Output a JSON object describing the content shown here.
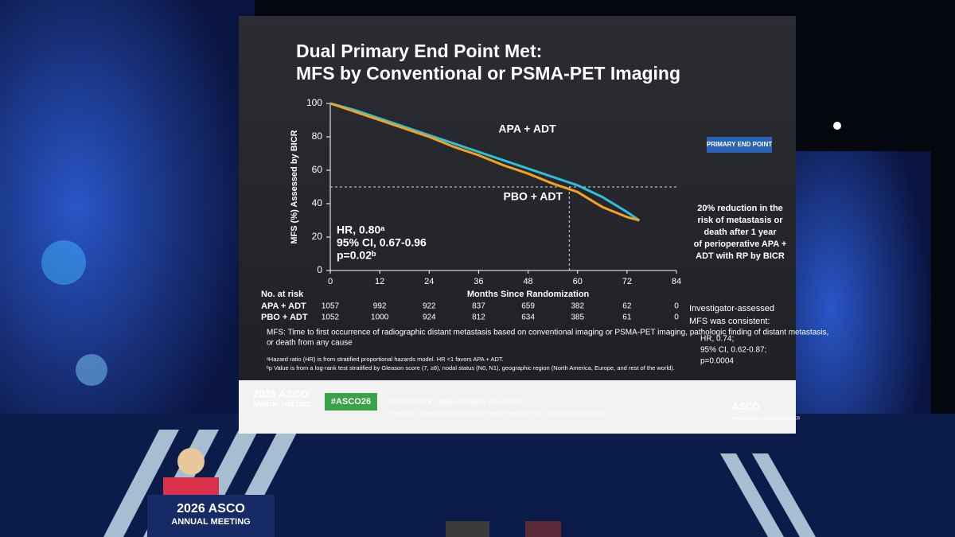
{
  "chart_data": {
    "type": "line",
    "title": [
      "Dual Primary End Point Met:",
      "MFS by Conventional or PSMA-PET Imaging"
    ],
    "badge": "PRIMARY END POINT",
    "ylabel": "MFS (%) Assessed by BICR",
    "xlabel": "Months Since Randomization",
    "x": [
      0,
      6,
      12,
      18,
      24,
      30,
      36,
      42,
      48,
      54,
      60,
      66,
      72,
      75
    ],
    "series": [
      {
        "name": "APA + ADT",
        "color": "#2fbfdc",
        "values": [
          100,
          96,
          91,
          86,
          81,
          76,
          71,
          66,
          61,
          56,
          51,
          44,
          35,
          30
        ]
      },
      {
        "name": "PBO + ADT",
        "color": "#f5a21f",
        "values": [
          100,
          95,
          90,
          85,
          80,
          74,
          69,
          63,
          58,
          52,
          47,
          38,
          32,
          30
        ]
      }
    ],
    "xlim": [
      0,
      84
    ],
    "xticks": [
      0,
      12,
      24,
      36,
      48,
      60,
      72,
      84
    ],
    "ylim": [
      0,
      100
    ],
    "yticks": [
      0,
      20,
      40,
      60,
      80,
      100
    ],
    "reference_y": 50,
    "reference_x": 58,
    "stats": [
      "HR, 0.80ᵃ",
      "95% CI, 0.67-0.96",
      "p=0.02ᵇ"
    ],
    "at_risk": {
      "title": "No. at risk",
      "rows": [
        {
          "name": "APA + ADT",
          "values": [
            "1057",
            "992",
            "922",
            "837",
            "659",
            "382",
            "62",
            "0"
          ]
        },
        {
          "name": "PBO + ADT",
          "values": [
            "1052",
            "1000",
            "924",
            "812",
            "634",
            "385",
            "61",
            "0"
          ]
        }
      ]
    }
  },
  "side_note": [
    "20% reduction in the",
    "risk of metastasis or",
    "death after 1 year",
    "of perioperative APA +",
    "ADT with RP by BICR"
  ],
  "investigator": {
    "heading": [
      "Investigator-assessed",
      "MFS was consistent:"
    ],
    "items": [
      "HR, 0.74;",
      "95% CI, 0.62-0.87;",
      "p=0.0004"
    ]
  },
  "definition": [
    "MFS: Time to first occurrence of radiographic distant metastasis based on conventional imaging or PSMA-PET imaging, pathologic finding of distant metastasis,",
    "or death from any cause"
  ],
  "footnotes": [
    "ᵃHazard ratio (HR) is from stratified proportional hazards model. HR <1 favors APA + ADT.",
    "ᵇp Value is from a log-rank test stratified by Gleason score (7, ≥8), nodal status (N0, N1), geographic region (North America, Europe, and rest of the world)."
  ],
  "footer": {
    "meeting": [
      "2026 ASCO",
      "ANNUAL MEETING"
    ],
    "hashtag": "#ASCO26",
    "presenter": "PRESENTED BY: Mary-Ellen Taplin, MD, FASCO",
    "notice": "Presentation is property of the author and ASCO. Permission required for reuse; contact permissions@asco.org",
    "logo": "ASCO",
    "tagline": "KNOWLEDGE CONQUERS CANCER"
  },
  "podium": [
    "2026 ASCO",
    "ANNUAL MEETING"
  ]
}
